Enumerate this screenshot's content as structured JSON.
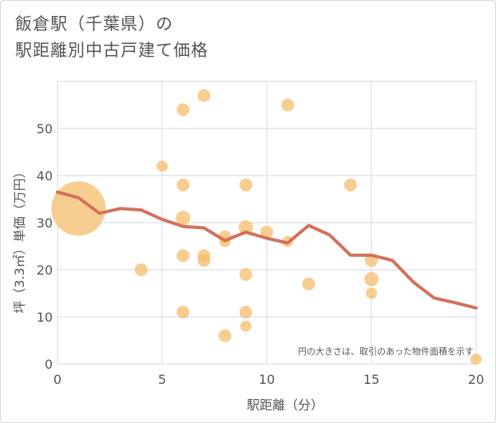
{
  "title": {
    "line1": "飯倉駅（千葉県）の",
    "line2": "駅距離別中古戸建て価格"
  },
  "chart_data": {
    "type": "scatter",
    "xlabel": "駅距離（分）",
    "ylabel": "坪（3.3㎡）単価（万円）",
    "xlim": [
      0,
      20
    ],
    "ylim": [
      0,
      60
    ],
    "xticks": [
      0,
      5,
      10,
      15,
      20
    ],
    "yticks": [
      0,
      10,
      20,
      30,
      40,
      50
    ],
    "grid": true,
    "note": "円の大きさは、取引のあった物件面積を示す",
    "colors": {
      "bubble": "#f5c06f",
      "line": "#d4705a",
      "grid": "#d0d8e0"
    },
    "points": [
      {
        "x": 1,
        "y": 33,
        "r": 34
      },
      {
        "x": 4,
        "y": 20,
        "r": 8
      },
      {
        "x": 5,
        "y": 42,
        "r": 7
      },
      {
        "x": 6,
        "y": 54,
        "r": 8
      },
      {
        "x": 6,
        "y": 38,
        "r": 8
      },
      {
        "x": 6,
        "y": 31,
        "r": 9
      },
      {
        "x": 6,
        "y": 23,
        "r": 8
      },
      {
        "x": 6,
        "y": 11,
        "r": 8
      },
      {
        "x": 7,
        "y": 57,
        "r": 8
      },
      {
        "x": 7,
        "y": 23,
        "r": 8
      },
      {
        "x": 7,
        "y": 22,
        "r": 8
      },
      {
        "x": 8,
        "y": 27,
        "r": 8
      },
      {
        "x": 8,
        "y": 26,
        "r": 7
      },
      {
        "x": 8,
        "y": 6,
        "r": 8
      },
      {
        "x": 9,
        "y": 38,
        "r": 8
      },
      {
        "x": 9,
        "y": 29,
        "r": 9
      },
      {
        "x": 9,
        "y": 19,
        "r": 8
      },
      {
        "x": 9,
        "y": 11,
        "r": 8
      },
      {
        "x": 9,
        "y": 8,
        "r": 7
      },
      {
        "x": 10,
        "y": 28,
        "r": 8
      },
      {
        "x": 11,
        "y": 55,
        "r": 8
      },
      {
        "x": 11,
        "y": 26,
        "r": 7
      },
      {
        "x": 12,
        "y": 17,
        "r": 8
      },
      {
        "x": 14,
        "y": 38,
        "r": 8
      },
      {
        "x": 15,
        "y": 22,
        "r": 8
      },
      {
        "x": 15,
        "y": 18,
        "r": 9
      },
      {
        "x": 15,
        "y": 15,
        "r": 7
      },
      {
        "x": 20,
        "y": 1,
        "r": 7
      }
    ],
    "trend": {
      "x": [
        0,
        1,
        2,
        3,
        4,
        5,
        6,
        7,
        8,
        9,
        10,
        11,
        12,
        13,
        14,
        15,
        16,
        17,
        18,
        19,
        20
      ],
      "y": [
        36.5,
        35.3,
        32,
        33,
        32.7,
        30.7,
        29.2,
        28.9,
        26.2,
        28,
        26.7,
        25.7,
        29.4,
        27.4,
        23.1,
        23.1,
        22,
        17.4,
        14,
        13,
        11.9
      ]
    }
  }
}
